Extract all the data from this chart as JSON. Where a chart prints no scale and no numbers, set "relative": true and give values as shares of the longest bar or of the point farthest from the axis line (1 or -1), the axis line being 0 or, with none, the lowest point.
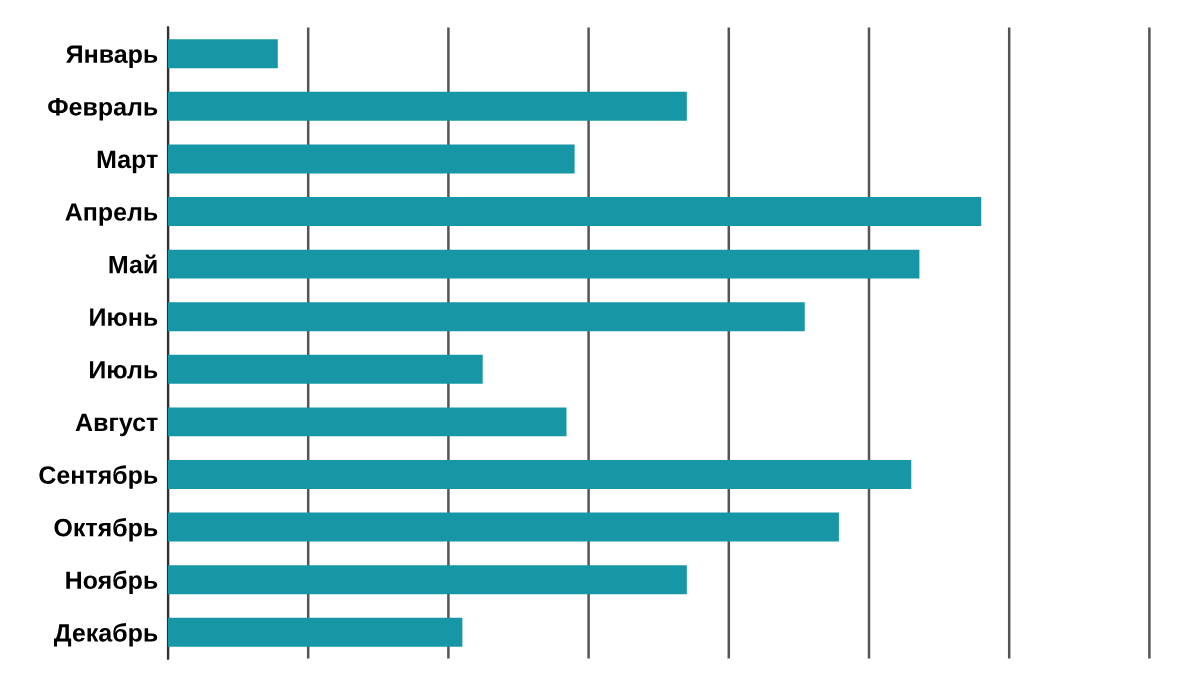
{
  "chart_data": {
    "type": "bar",
    "orientation": "horizontal",
    "relative": true,
    "categories": [
      "Январь",
      "Февраль",
      "Март",
      "Апрель",
      "Май",
      "Июнь",
      "Июль",
      "Август",
      "Сентябрь",
      "Октябрь",
      "Ноябрь",
      "Декабрь"
    ],
    "values": [
      0.135,
      0.638,
      0.5,
      1,
      0.924,
      0.783,
      0.387,
      0.49,
      0.914,
      0.825,
      0.638,
      0.362
    ],
    "color": "#1797a6",
    "grid": "x",
    "tick_labels": "y",
    "legend": false
  }
}
